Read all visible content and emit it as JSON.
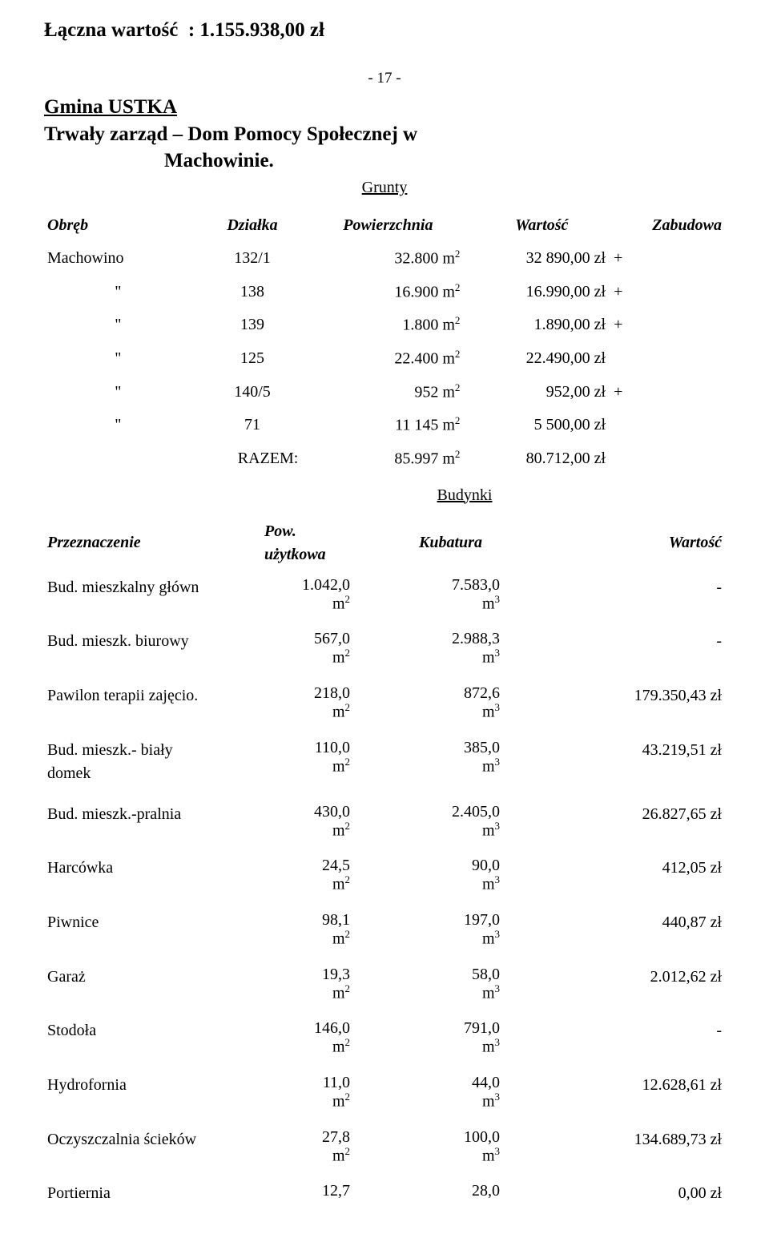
{
  "header": {
    "total_label": "Łączna wartość",
    "total_sep": ":",
    "total_value": "1.155.938,00 zł",
    "page_number": "- 17 -",
    "section_line1": "Gmina  USTKA",
    "section_line2": "Trwały zarząd – Dom Pomocy Społecznej w",
    "section_line3": "Machowinie.",
    "grunty_heading": "Grunty",
    "budynki_heading": "Budynki"
  },
  "grunty": {
    "columns": {
      "obreb": "Obręb",
      "dzialka": "Działka",
      "powierzchnia": "Powierzchnia",
      "wartosc": "Wartość",
      "zabudowa": "Zabudowa"
    },
    "rows": [
      {
        "obreb": "Machowino",
        "dzialka": "132/1",
        "pow_val": "32.800",
        "war": "32 890,00 zł",
        "plus": "+"
      },
      {
        "obreb": "\"",
        "dzialka": "138",
        "pow_val": "16.900",
        "war": "16.990,00 zł",
        "plus": "+"
      },
      {
        "obreb": "\"",
        "dzialka": "139",
        "pow_val": "1.800",
        "war": "1.890,00 zł",
        "plus": "+"
      },
      {
        "obreb": "\"",
        "dzialka": "125",
        "pow_val": "22.400",
        "war": "22.490,00 zł",
        "plus": ""
      },
      {
        "obreb": "\"",
        "dzialka": "140/5",
        "pow_val": "952",
        "war": "952,00 zł",
        "plus": "+"
      },
      {
        "obreb": "\"",
        "dzialka": "71",
        "pow_val": "11 145",
        "war": "5 500,00 zł",
        "plus": ""
      }
    ],
    "razem": {
      "label": "RAZEM:",
      "pow": "85.997",
      "war": "80.712,00 zł"
    }
  },
  "budynki": {
    "columns": {
      "przeznaczenie": "Przeznaczenie",
      "pow": "Pow. użytkowa",
      "kub": "Kubatura",
      "war": "Wartość"
    },
    "rows": [
      {
        "name": "Bud. mieszkalny główn",
        "pow": "1.042,0",
        "kub": "7.583,0",
        "war": "-"
      },
      {
        "name": "Bud. mieszk. biurowy",
        "pow": "567,0",
        "kub": "2.988,3",
        "war": "-"
      },
      {
        "name": "Pawilon terapii zajęcio.",
        "pow": "218,0",
        "kub": "872,6",
        "war": "179.350,43 zł"
      },
      {
        "name1": "Bud. mieszk.- biały",
        "name2": "domek",
        "pow": "110,0",
        "kub": "385,0",
        "war": "43.219,51 zł"
      },
      {
        "name": "Bud. mieszk.-pralnia",
        "pow": "430,0",
        "kub": "2.405,0",
        "war": "26.827,65 zł"
      },
      {
        "name": "Harcówka",
        "pow": "24,5",
        "kub": "90,0",
        "war": "412,05 zł"
      },
      {
        "name": "Piwnice",
        "pow": "98,1",
        "kub": "197,0",
        "war": "440,87 zł"
      },
      {
        "name": "Garaż",
        "pow": "19,3",
        "kub": "58,0",
        "war": "2.012,62 zł"
      },
      {
        "name": "Stodoła",
        "pow": "146,0",
        "kub": "791,0",
        "war": "-"
      },
      {
        "name": "Hydrofornia",
        "pow": "11,0",
        "kub": "44,0",
        "war": "12.628,61 zł"
      },
      {
        "name": "Oczyszczalnia ścieków",
        "pow": "27,8",
        "kub": "100,0",
        "war": "134.689,73 zł"
      },
      {
        "name": "Portiernia",
        "pow": "12,7",
        "kub": "28,0",
        "war": "0,00 zł",
        "no_units": true
      }
    ]
  }
}
